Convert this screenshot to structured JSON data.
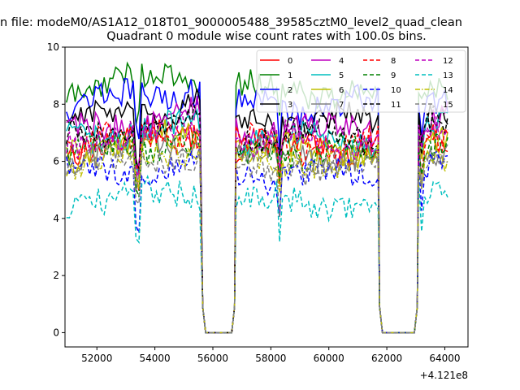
{
  "chart_data": {
    "type": "line",
    "suptitle": "n file: modeM0/AS1A12_018T01_9000005488_39585cztM0_level2_quad_clean",
    "title": "Quadrant 0 module wise count rates with 100.0s bins.",
    "xlabel": "",
    "ylabel": "",
    "x_offset_label": "+4.121e8",
    "xlim": [
      50900,
      64800
    ],
    "ylim": [
      -0.5,
      10
    ],
    "xticks": [
      52000,
      54000,
      56000,
      58000,
      60000,
      62000,
      64000
    ],
    "xtick_labels": [
      "52000",
      "54000",
      "56000",
      "58000",
      "60000",
      "62000",
      "64000"
    ],
    "yticks": [
      0,
      2,
      4,
      6,
      8,
      10
    ],
    "ytick_labels": [
      "0",
      "2",
      "4",
      "6",
      "8",
      "10"
    ],
    "grid": false,
    "legend": {
      "placement": "top-right",
      "columns": 4
    },
    "gaps": [
      [
        55600,
        56800
      ],
      [
        61700,
        63100
      ]
    ],
    "segments": [
      [
        50950,
        55600
      ],
      [
        56800,
        61700
      ],
      [
        63100,
        64150
      ]
    ],
    "series": [
      {
        "name": "0",
        "color": "#ff0000",
        "dash": "solid",
        "level": 6.5
      },
      {
        "name": "1",
        "color": "#008000",
        "dash": "solid",
        "level": 8.5
      },
      {
        "name": "2",
        "color": "#0000ff",
        "dash": "solid",
        "level": 8.0
      },
      {
        "name": "3",
        "color": "#000000",
        "dash": "solid",
        "level": 7.4
      },
      {
        "name": "4",
        "color": "#bf00bf",
        "dash": "solid",
        "level": 7.1
      },
      {
        "name": "5",
        "color": "#00bfbf",
        "dash": "solid",
        "level": 6.8
      },
      {
        "name": "6",
        "color": "#bfbf00",
        "dash": "solid",
        "level": 6.4
      },
      {
        "name": "7",
        "color": "#808080",
        "dash": "solid",
        "level": 6.2
      },
      {
        "name": "8",
        "color": "#ff0000",
        "dash": "dashed",
        "level": 6.6
      },
      {
        "name": "9",
        "color": "#008000",
        "dash": "dashed",
        "level": 6.3
      },
      {
        "name": "10",
        "color": "#0000ff",
        "dash": "dashed",
        "level": 5.5
      },
      {
        "name": "11",
        "color": "#000000",
        "dash": "dashed",
        "level": 6.9
      },
      {
        "name": "12",
        "color": "#bf00bf",
        "dash": "dashed",
        "level": 6.7
      },
      {
        "name": "13",
        "color": "#00bfbf",
        "dash": "dashed",
        "level": 4.6
      },
      {
        "name": "14",
        "color": "#bfbf00",
        "dash": "dashdot",
        "level": 6.0
      },
      {
        "name": "15",
        "color": "#808080",
        "dash": "dashed",
        "level": 5.8
      }
    ]
  }
}
